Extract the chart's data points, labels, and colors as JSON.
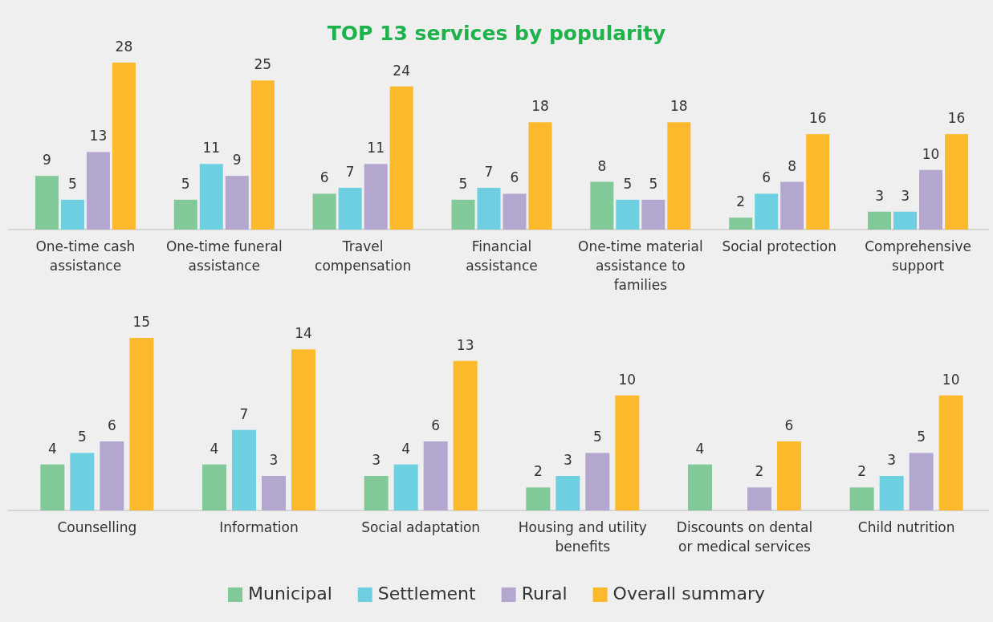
{
  "chart_data": [
    {
      "type": "bar",
      "title": "TOP 13 services by popularity",
      "categories": [
        "One-time cash assistance",
        "One-time funeral assistance",
        "Travel compensation",
        "Financial assistance",
        "One-time material assistance to families",
        "Social protection",
        "Comprehensive support"
      ],
      "data_labels": true,
      "legend": false,
      "series": [
        {
          "color": "#82c99a",
          "values": [
            9,
            5,
            6,
            5,
            8,
            2,
            3
          ]
        },
        {
          "color": "#6dcfe0",
          "values": [
            5,
            11,
            7,
            7,
            5,
            6,
            3
          ]
        },
        {
          "color": "#b3a7cf",
          "values": [
            13,
            9,
            11,
            6,
            5,
            8,
            10
          ]
        },
        {
          "color": "#fbb92b",
          "values": [
            28,
            25,
            24,
            18,
            18,
            16,
            16
          ]
        }
      ]
    },
    {
      "type": "bar",
      "categories": [
        "Counselling",
        "Information",
        "Social adaptation",
        "Housing and utility benefits",
        "Discounts on dental or medical services",
        "Child nutrition"
      ],
      "data_labels": true,
      "legend": "bottom",
      "series": [
        {
          "name": "Municipal",
          "color": "#82c99a",
          "values": [
            4,
            4,
            3,
            2,
            4,
            2
          ]
        },
        {
          "name": "Settlement",
          "color": "#6dcfe0",
          "values": [
            5,
            7,
            4,
            3,
            null,
            3
          ]
        },
        {
          "name": "Rural",
          "color": "#b3a7cf",
          "values": [
            6,
            3,
            6,
            5,
            2,
            5
          ]
        },
        {
          "name": "Overall summary",
          "color": "#fbb92b",
          "values": [
            15,
            14,
            13,
            10,
            6,
            10
          ]
        }
      ]
    }
  ]
}
